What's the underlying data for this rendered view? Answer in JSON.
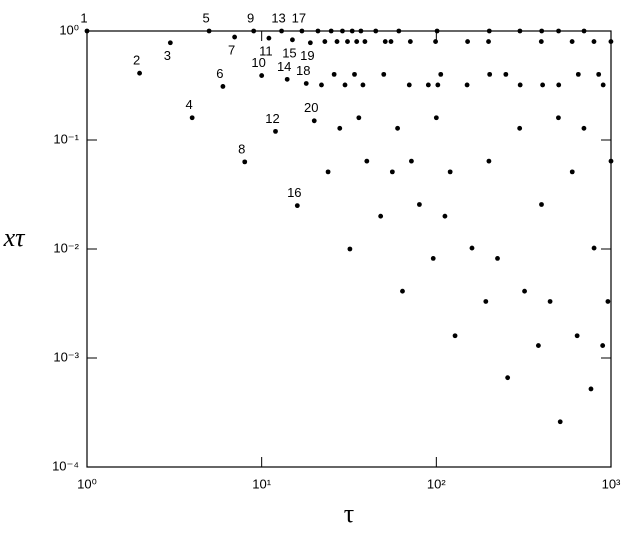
{
  "chart_data": {
    "type": "scatter",
    "xlabel": "τ",
    "ylabel": "xτ",
    "xscale": "log",
    "yscale": "log",
    "xlim": [
      1,
      1000
    ],
    "ylim": [
      0.0001,
      1
    ],
    "xticks": [
      {
        "value": 1,
        "label": "10⁰"
      },
      {
        "value": 10,
        "label": "10¹"
      },
      {
        "value": 100,
        "label": "10²"
      },
      {
        "value": 1000,
        "label": "10³"
      }
    ],
    "yticks": [
      {
        "value": 0.0001,
        "label": "10⁻⁴"
      },
      {
        "value": 0.001,
        "label": "10⁻³"
      },
      {
        "value": 0.01,
        "label": "10⁻²"
      },
      {
        "value": 0.1,
        "label": "10⁻¹"
      },
      {
        "value": 1,
        "label": "10⁰"
      }
    ],
    "color": "#000000",
    "x": [
      1,
      2,
      3,
      4,
      5,
      6,
      7,
      8,
      9,
      10,
      11,
      12,
      13,
      14,
      15,
      16,
      17,
      18,
      19,
      20,
      21,
      22,
      23,
      24,
      25,
      26,
      27,
      28,
      29,
      30,
      31,
      32,
      33,
      34,
      35,
      36,
      37,
      38,
      39,
      40,
      48,
      56,
      64,
      80,
      96,
      112,
      128,
      160,
      192,
      224,
      256,
      320,
      384,
      448,
      512,
      640,
      768,
      896,
      960,
      50,
      60,
      70,
      72,
      90,
      100,
      120,
      150,
      200,
      250,
      300,
      400,
      500,
      600,
      700,
      800,
      1000,
      45,
      51,
      61,
      71,
      101,
      151,
      201,
      301,
      401,
      501,
      701,
      999,
      55,
      99,
      199,
      399,
      599,
      799,
      102,
      202,
      302,
      502,
      902,
      106,
      406,
      650,
      850
    ],
    "values": [
      1,
      0.41,
      0.78,
      0.16,
      1,
      0.31,
      0.88,
      0.063,
      1,
      0.39,
      0.86,
      0.12,
      1,
      0.36,
      0.83,
      0.025,
      1,
      0.33,
      0.78,
      0.15,
      1,
      0.32,
      0.8,
      0.051,
      1,
      0.4,
      0.8,
      0.128,
      1,
      0.32,
      0.8,
      0.01,
      1,
      0.4,
      0.8,
      0.16,
      1,
      0.32,
      0.8,
      0.064,
      0.02,
      0.051,
      0.0041,
      0.0256,
      0.0082,
      0.02,
      0.0016,
      0.0102,
      0.0033,
      0.0082,
      0.00066,
      0.0041,
      0.0013,
      0.0033,
      0.00026,
      0.0016,
      0.00052,
      0.0013,
      0.0033,
      0.4,
      0.128,
      0.32,
      0.064,
      0.32,
      0.16,
      0.051,
      0.32,
      0.064,
      0.4,
      0.128,
      0.0256,
      0.16,
      0.051,
      0.128,
      0.0102,
      0.064,
      1,
      0.8,
      1,
      0.8,
      1,
      0.8,
      1,
      1,
      1,
      1,
      1,
      0.8,
      0.8,
      0.8,
      0.8,
      0.8,
      0.8,
      0.8,
      0.32,
      0.4,
      0.32,
      0.32,
      0.32,
      0.4,
      0.32,
      0.4,
      0.4
    ],
    "labeled_points": 20
  }
}
